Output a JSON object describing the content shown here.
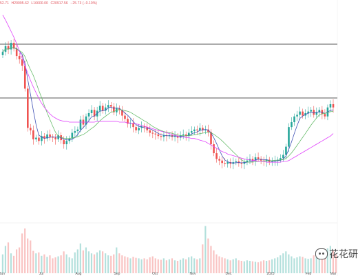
{
  "ohlc": {
    "open": "52.71",
    "high": "H20095.62",
    "low": "L16600.00",
    "close": "C20917.56",
    "change": "−25.73 (−0.10%)"
  },
  "watermark": {
    "icon": "wechat-icon",
    "text": "花花研"
  },
  "colors": {
    "up": "#26a69a",
    "down": "#ef5350",
    "ma_short": "#3f51b5",
    "ma_mid": "#66bb6a",
    "ma_long": "#e040fb",
    "levels": "#222222"
  },
  "chart_data": {
    "type": "candlestick",
    "x_labels": [
      "Jun",
      "Jul",
      "Aug",
      "Sep",
      "Oct",
      "Nov",
      "Dec",
      "2023",
      "Feb",
      "Mar"
    ],
    "horizontal_levels": [
      "upper",
      "lower"
    ],
    "close_series": [
      30.5,
      31.2,
      30.8,
      31.6,
      30.9,
      30.0,
      29.6,
      28.8,
      26.0,
      21.2,
      20.9,
      19.8,
      20.0,
      19.6,
      20.2,
      19.9,
      20.4,
      20.1,
      20.0,
      19.8,
      20.3,
      19.7,
      19.2,
      19.6,
      19.9,
      20.6,
      20.8,
      21.0,
      22.2,
      21.6,
      22.6,
      23.0,
      23.4,
      22.6,
      23.3,
      23.9,
      23.3,
      23.7,
      24.0,
      23.8,
      23.1,
      23.6,
      23.4,
      22.7,
      22.3,
      21.7,
      21.8,
      21.3,
      20.9,
      21.2,
      21.4,
      21.3,
      20.9,
      20.6,
      20.5,
      20.4,
      20.2,
      20.1,
      20.3,
      20.2,
      20.3,
      20.1,
      20.2,
      20.0,
      20.3,
      20.4,
      20.2,
      20.6,
      20.8,
      21.0,
      20.9,
      21.2,
      20.9,
      21.0,
      20.7,
      19.2,
      18.1,
      17.4,
      17.2,
      16.9,
      16.8,
      17.0,
      16.8,
      17.0,
      17.1,
      16.9,
      16.8,
      17.0,
      17.2,
      17.4,
      17.2,
      17.6,
      17.4,
      17.2,
      17.1,
      17.3,
      17.0,
      17.1,
      17.2,
      17.3,
      17.5,
      17.9,
      18.9,
      21.3,
      21.9,
      22.6,
      22.8,
      23.2,
      22.7,
      23.0,
      23.2,
      23.4,
      22.8,
      23.1,
      23.4,
      22.9,
      22.6,
      23.7,
      24.1,
      23.7
    ],
    "volume_series": [
      0.38,
      0.55,
      0.62,
      0.4,
      0.35,
      0.48,
      0.52,
      0.8,
      0.9,
      0.7,
      0.66,
      0.45,
      0.4,
      0.42,
      0.35,
      0.38,
      0.33,
      0.36,
      0.3,
      0.32,
      0.34,
      0.36,
      0.44,
      0.38,
      0.32,
      0.3,
      0.42,
      0.48,
      0.6,
      0.46,
      0.52,
      0.44,
      0.4,
      0.38,
      0.42,
      0.46,
      0.44,
      0.4,
      0.36,
      0.35,
      0.38,
      0.52,
      0.4,
      0.36,
      0.34,
      0.32,
      0.3,
      0.33,
      0.31,
      0.3,
      0.28,
      0.3,
      0.28,
      0.32,
      0.34,
      0.3,
      0.28,
      0.27,
      0.3,
      0.26,
      0.28,
      0.3,
      0.26,
      0.25,
      0.27,
      0.3,
      0.28,
      0.32,
      0.34,
      0.3,
      0.28,
      0.3,
      0.58,
      0.95,
      0.7,
      0.55,
      0.46,
      0.38,
      0.34,
      0.32,
      0.3,
      0.28,
      0.26,
      0.28,
      0.3,
      0.26,
      0.25,
      0.24,
      0.26,
      0.25,
      0.24,
      0.23,
      0.22,
      0.24,
      0.26,
      0.25,
      0.26,
      0.28,
      0.3,
      0.32,
      0.36,
      0.4,
      0.44,
      0.38,
      0.34,
      0.3,
      0.32,
      0.34,
      0.33,
      0.3,
      0.29,
      0.3,
      0.36,
      0.4,
      0.35,
      0.3,
      0.34,
      0.5,
      0.55,
      0.45,
      0.38
    ],
    "ma_long_series": [
      35.0,
      34.4,
      33.7,
      33.0,
      32.3,
      31.5,
      30.6,
      29.7,
      28.8,
      27.9,
      27.0,
      26.2,
      25.5,
      24.8,
      24.2,
      23.7,
      23.3,
      22.9,
      22.6,
      22.4,
      22.2,
      22.1,
      22.0,
      22.0,
      21.9,
      21.9,
      21.9,
      21.9,
      21.9,
      21.9,
      21.9,
      21.9,
      21.9,
      21.9,
      22.0,
      22.0,
      22.0,
      22.0,
      22.0,
      22.0,
      22.0,
      22.0,
      21.9,
      21.9,
      21.9,
      21.8,
      21.8,
      21.7,
      21.7,
      21.6,
      21.5,
      21.4,
      21.3,
      21.2,
      21.1,
      21.0,
      20.9,
      20.8,
      20.7,
      20.6,
      20.5,
      20.4,
      20.3,
      20.2,
      20.1,
      20.1,
      20.0,
      20.0,
      19.9,
      19.9,
      19.8,
      19.7,
      19.6,
      19.5,
      19.3,
      19.1,
      18.9,
      18.7,
      18.5,
      18.3,
      18.2,
      18.0,
      17.9,
      17.8,
      17.7,
      17.6,
      17.5,
      17.4,
      17.3,
      17.3,
      17.2,
      17.2,
      17.1,
      17.1,
      17.1,
      17.0,
      17.0,
      17.0,
      17.0,
      17.0,
      17.0,
      17.1,
      17.1,
      17.2,
      17.4,
      17.6,
      17.8,
      18.0,
      18.2,
      18.4,
      18.6,
      18.8,
      19.0,
      19.2,
      19.4,
      19.6,
      19.8,
      20.0,
      20.2,
      20.5
    ]
  }
}
